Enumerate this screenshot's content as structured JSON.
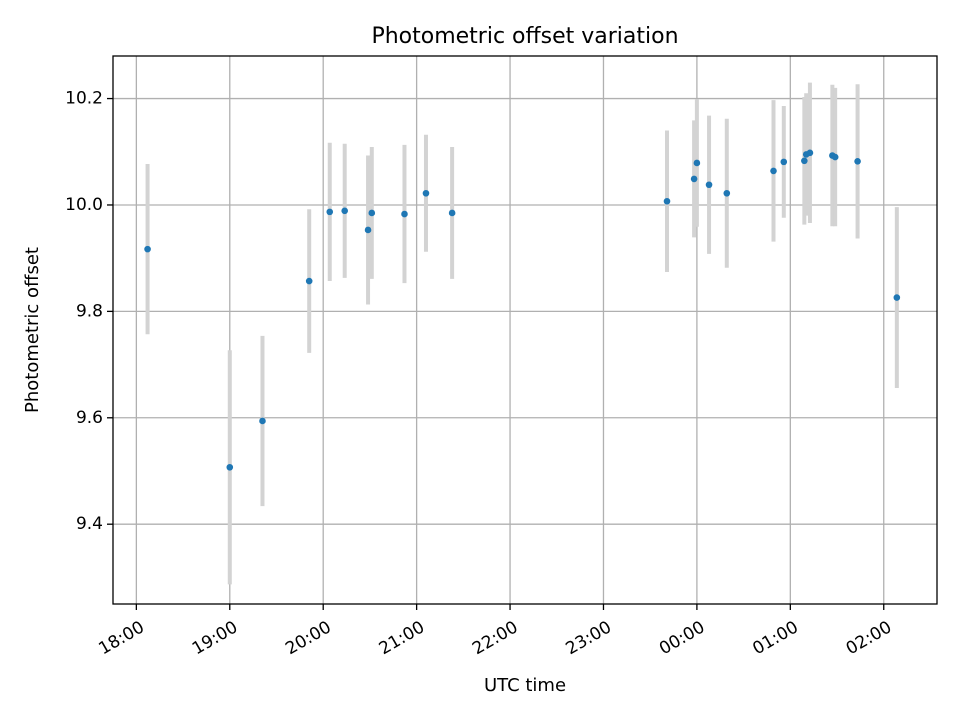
{
  "chart_data": {
    "type": "scatter",
    "title": "Photometric offset variation",
    "xlabel": "UTC time",
    "ylabel": "Photometric offset",
    "x_unit": "hours (UTC, continuing past midnight)",
    "xlim": [
      17.75,
      26.57
    ],
    "ylim": [
      9.25,
      10.28
    ],
    "x_ticks": [
      {
        "value": 18,
        "label": "18:00"
      },
      {
        "value": 19,
        "label": "19:00"
      },
      {
        "value": 20,
        "label": "20:00"
      },
      {
        "value": 21,
        "label": "21:00"
      },
      {
        "value": 22,
        "label": "22:00"
      },
      {
        "value": 23,
        "label": "23:00"
      },
      {
        "value": 24,
        "label": "00:00"
      },
      {
        "value": 25,
        "label": "01:00"
      },
      {
        "value": 26,
        "label": "02:00"
      }
    ],
    "y_ticks": [
      {
        "value": 9.4,
        "label": "9.4"
      },
      {
        "value": 9.6,
        "label": "9.6"
      },
      {
        "value": 9.8,
        "label": "9.8"
      },
      {
        "value": 10.0,
        "label": "10.0"
      },
      {
        "value": 10.2,
        "label": "10.2"
      }
    ],
    "grid": true,
    "marker_color": "#1f77b4",
    "errorbar_color": "#d3d3d3",
    "points": [
      {
        "x": 18.12,
        "y": 9.917,
        "err": 0.16
      },
      {
        "x": 19.0,
        "y": 9.507,
        "err": 0.22
      },
      {
        "x": 19.35,
        "y": 9.594,
        "err": 0.16
      },
      {
        "x": 19.85,
        "y": 9.857,
        "err": 0.135
      },
      {
        "x": 20.07,
        "y": 9.987,
        "err": 0.13
      },
      {
        "x": 20.23,
        "y": 9.989,
        "err": 0.126
      },
      {
        "x": 20.48,
        "y": 9.953,
        "err": 0.14
      },
      {
        "x": 20.52,
        "y": 9.985,
        "err": 0.124
      },
      {
        "x": 20.87,
        "y": 9.983,
        "err": 0.13
      },
      {
        "x": 21.1,
        "y": 10.022,
        "err": 0.11
      },
      {
        "x": 21.38,
        "y": 9.985,
        "err": 0.124
      },
      {
        "x": 23.68,
        "y": 10.007,
        "err": 0.133
      },
      {
        "x": 23.97,
        "y": 10.049,
        "err": 0.11
      },
      {
        "x": 24.0,
        "y": 10.079,
        "err": 0.12
      },
      {
        "x": 24.13,
        "y": 10.038,
        "err": 0.13
      },
      {
        "x": 24.32,
        "y": 10.022,
        "err": 0.14
      },
      {
        "x": 24.82,
        "y": 10.064,
        "err": 0.133
      },
      {
        "x": 24.93,
        "y": 10.081,
        "err": 0.105
      },
      {
        "x": 25.15,
        "y": 10.083,
        "err": 0.12
      },
      {
        "x": 25.17,
        "y": 10.095,
        "err": 0.115
      },
      {
        "x": 25.21,
        "y": 10.098,
        "err": 0.132
      },
      {
        "x": 25.45,
        "y": 10.093,
        "err": 0.133
      },
      {
        "x": 25.48,
        "y": 10.09,
        "err": 0.13
      },
      {
        "x": 25.72,
        "y": 10.082,
        "err": 0.145
      },
      {
        "x": 26.14,
        "y": 9.826,
        "err": 0.17
      }
    ]
  }
}
